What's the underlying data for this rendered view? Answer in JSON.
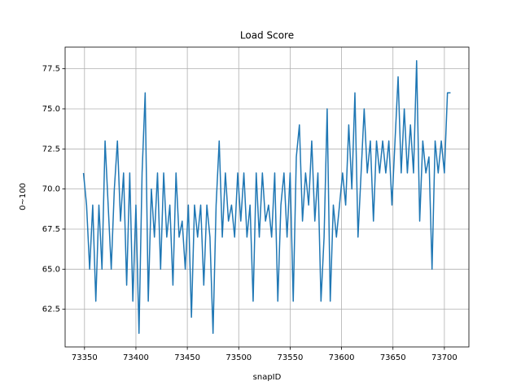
{
  "chart_data": {
    "type": "line",
    "title": "Load Score",
    "xlabel": "snapID",
    "ylabel": "0~100",
    "x": [
      73349,
      73352,
      73355,
      73358,
      73361,
      73364,
      73367,
      73370,
      73373,
      73376,
      73379,
      73382,
      73385,
      73388,
      73391,
      73394,
      73397,
      73400,
      73403,
      73406,
      73409,
      73412,
      73415,
      73418,
      73421,
      73424,
      73427,
      73430,
      73433,
      73436,
      73439,
      73442,
      73445,
      73448,
      73451,
      73454,
      73457,
      73460,
      73463,
      73466,
      73469,
      73472,
      73475,
      73478,
      73481,
      73484,
      73487,
      73490,
      73493,
      73496,
      73499,
      73502,
      73505,
      73508,
      73511,
      73514,
      73517,
      73520,
      73523,
      73526,
      73529,
      73532,
      73535,
      73538,
      73541,
      73544,
      73547,
      73550,
      73553,
      73556,
      73559,
      73562,
      73565,
      73568,
      73571,
      73574,
      73577,
      73580,
      73583,
      73586,
      73589,
      73592,
      73595,
      73598,
      73601,
      73604,
      73607,
      73610,
      73613,
      73616,
      73619,
      73622,
      73625,
      73628,
      73631,
      73634,
      73637,
      73640,
      73643,
      73646,
      73649,
      73652,
      73655,
      73658,
      73661,
      73664,
      73667,
      73670,
      73673,
      73676,
      73679,
      73682,
      73685,
      73688,
      73691,
      73694,
      73697,
      73700,
      73703,
      73706
    ],
    "values": [
      71,
      69,
      65,
      69,
      63,
      69,
      65,
      73,
      69,
      65,
      70,
      73,
      68,
      71,
      64,
      71,
      63,
      69,
      61,
      71,
      76,
      63,
      70,
      67,
      71,
      65,
      71,
      67,
      69,
      64,
      71,
      67,
      68,
      65,
      69,
      62,
      69,
      67,
      69,
      64,
      69,
      67,
      61,
      69,
      73,
      67,
      71,
      68,
      69,
      67,
      71,
      68,
      71,
      67,
      69,
      63,
      71,
      67,
      71,
      68,
      69,
      67,
      71,
      63,
      69,
      71,
      67,
      71,
      63,
      72,
      74,
      68,
      71,
      69,
      73,
      68,
      71,
      63,
      67,
      75,
      63,
      69,
      67,
      69,
      71,
      69,
      74,
      70,
      76,
      67,
      71,
      75,
      71,
      73,
      68,
      73,
      71,
      73,
      71,
      73,
      69,
      73,
      77,
      71,
      75,
      71,
      74,
      71,
      78,
      68,
      73,
      71,
      72,
      65,
      73,
      71,
      73,
      71,
      76,
      76
    ],
    "color": "#1f77b4",
    "xlim": [
      73331.15,
      73723.85
    ],
    "xticks": [
      73350,
      73400,
      73450,
      73500,
      73550,
      73600,
      73650,
      73700
    ],
    "ylim": [
      60.15,
      78.85
    ],
    "yticks": [
      62.5,
      {
        "value": 65,
        "label": "65.0"
      },
      67.5,
      {
        "value": 70,
        "label": "70.0"
      },
      72.5,
      {
        "value": 75,
        "label": "75.0"
      },
      77.5
    ],
    "grid": true
  }
}
